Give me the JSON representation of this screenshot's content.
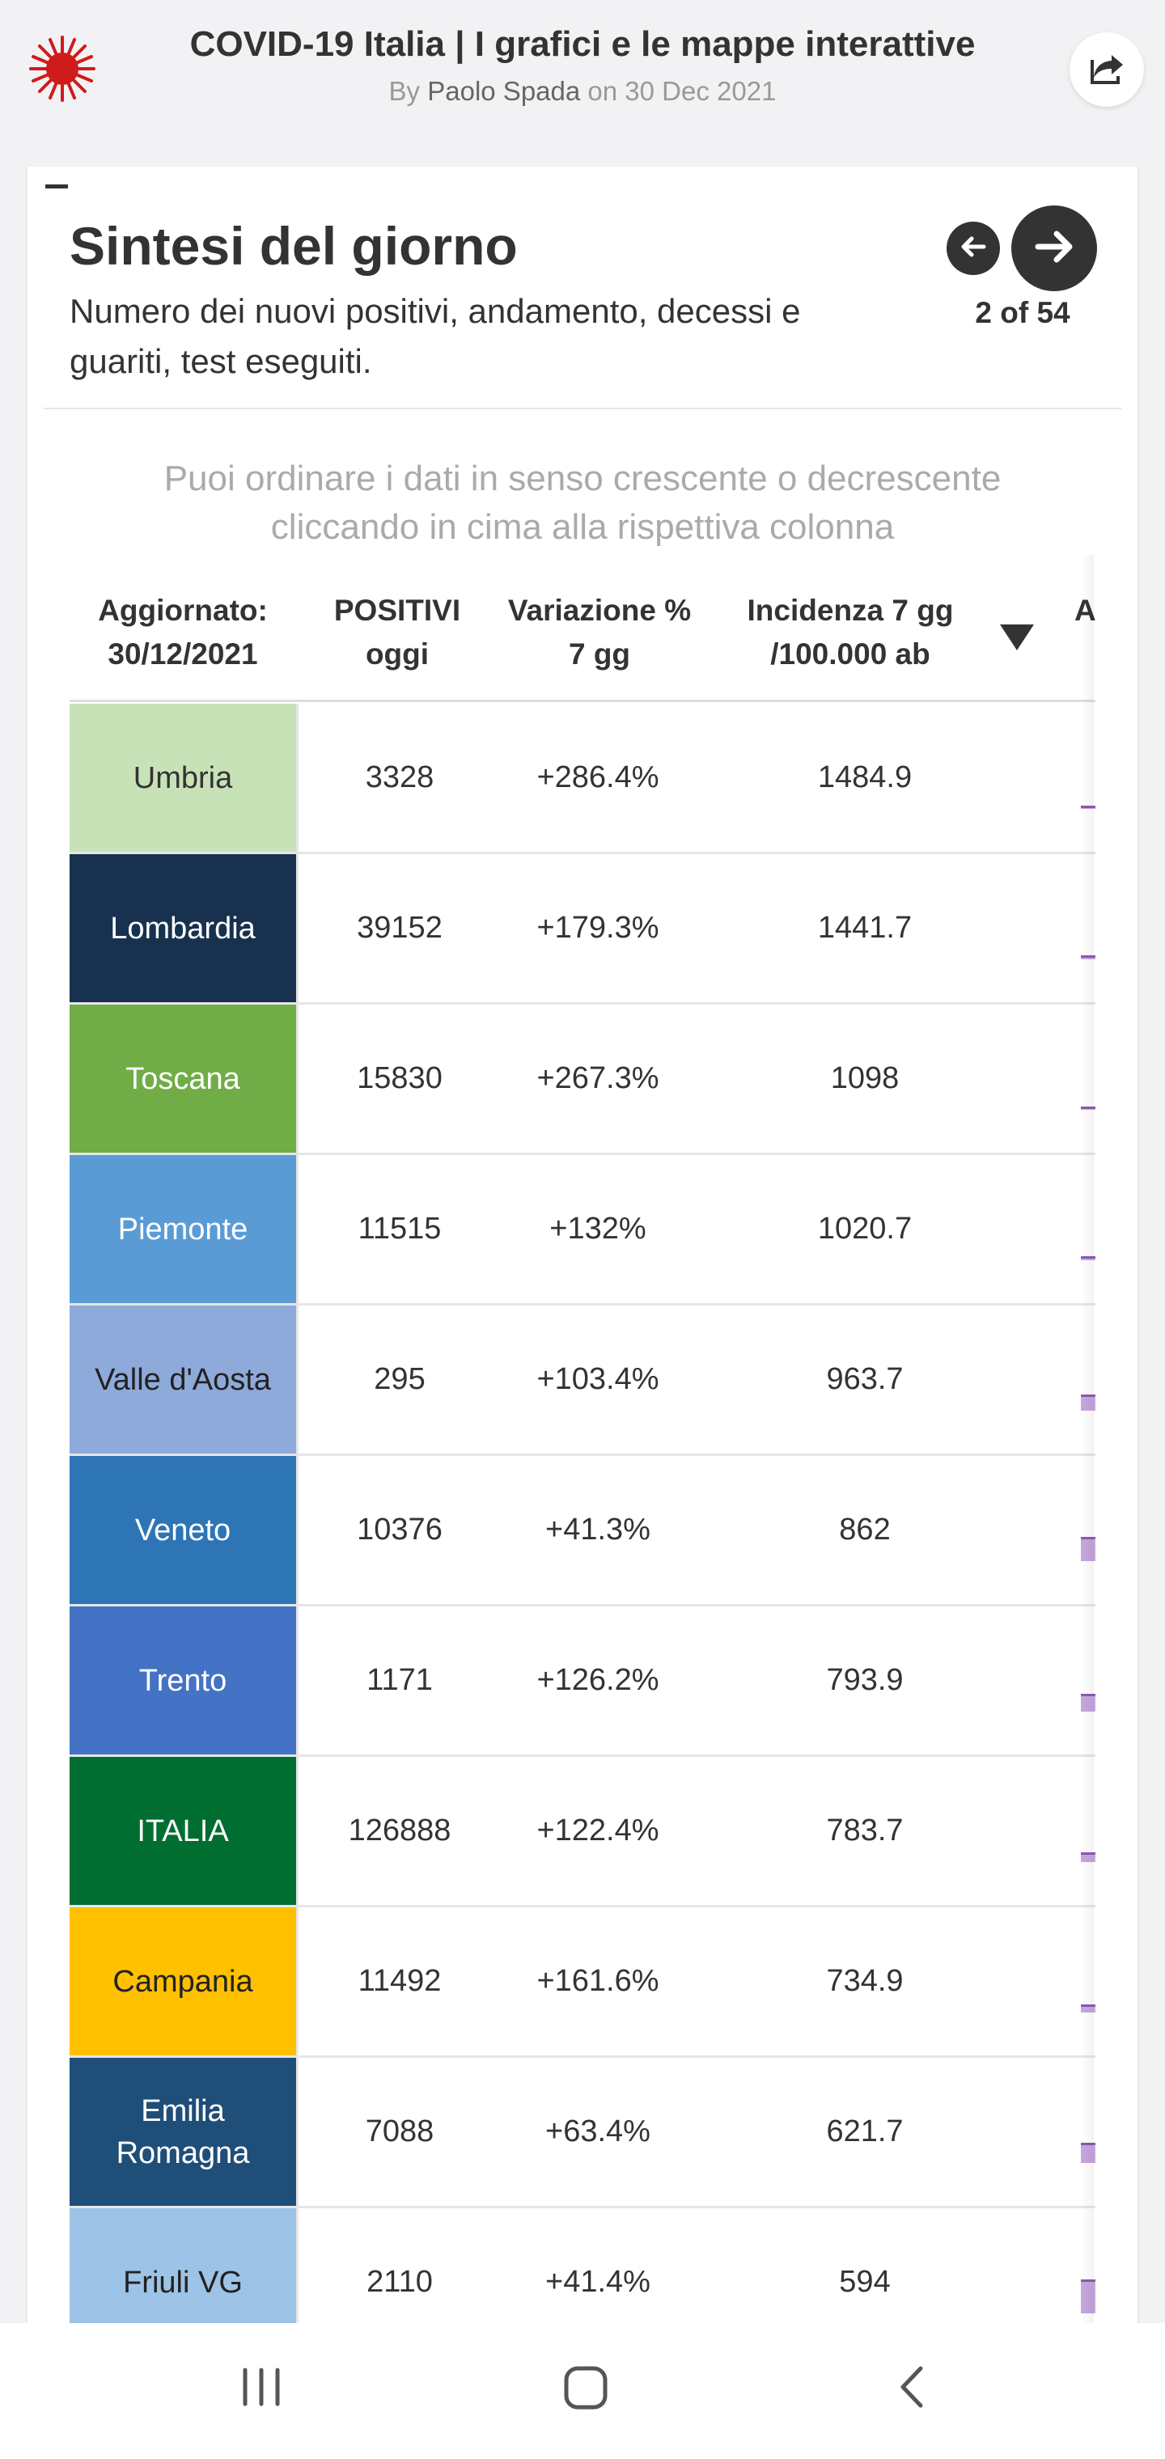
{
  "header": {
    "title": "COVID-19 Italia | I grafici e le mappe interattive",
    "byline_by": "By",
    "author": "Paolo Spada",
    "byline_on": "on",
    "date": "30 Dec 2021"
  },
  "slide": {
    "title": "Sintesi del giorno",
    "subtitle": "Numero dei nuovi positivi, andamento, decessi e guariti, test eseguiti.",
    "counter": "2 of 54",
    "instructions": "Puoi ordinare i dati in senso crescente o decrescente cliccando in cima alla rispettiva colonna"
  },
  "table": {
    "headers": {
      "updated": "Aggiornato: 30/12/2021",
      "positives": "POSITIVI oggi",
      "variation": "Variazione % 7 gg",
      "incidence": "Incidenza 7 gg /100.000 ab",
      "trend": "And"
    },
    "rows": [
      {
        "region": "Umbria",
        "positives": "3328",
        "variation": "+286.4%",
        "incidence": "1484.9",
        "bg": "#c8e2b8",
        "fg": "#333333",
        "spark": 0.04
      },
      {
        "region": "Lombardia",
        "positives": "39152",
        "variation": "+179.3%",
        "incidence": "1441.7",
        "bg": "#17314f",
        "fg": "#ffffff",
        "spark": 0.05
      },
      {
        "region": "Toscana",
        "positives": "15830",
        "variation": "+267.3%",
        "incidence": "1098",
        "bg": "#71ad47",
        "fg": "#ffffff",
        "spark": 0.04
      },
      {
        "region": "Piemonte",
        "positives": "11515",
        "variation": "+132%",
        "incidence": "1020.7",
        "bg": "#5b9bd5",
        "fg": "#ffffff",
        "spark": 0.05
      },
      {
        "region": "Valle d'Aosta",
        "positives": "295",
        "variation": "+103.4%",
        "incidence": "963.7",
        "bg": "#8eaadb",
        "fg": "#222222",
        "spark": 0.2
      },
      {
        "region": "Veneto",
        "positives": "10376",
        "variation": "+41.3%",
        "incidence": "862",
        "bg": "#2e75b6",
        "fg": "#ffffff",
        "spark": 0.3
      },
      {
        "region": "Trento",
        "positives": "1171",
        "variation": "+126.2%",
        "incidence": "793.9",
        "bg": "#4472c4",
        "fg": "#ffffff",
        "spark": 0.22
      },
      {
        "region": "ITALIA",
        "positives": "126888",
        "variation": "+122.4%",
        "incidence": "783.7",
        "bg": "#006d31",
        "fg": "#ffffff",
        "spark": 0.12
      },
      {
        "region": "Campania",
        "positives": "11492",
        "variation": "+161.6%",
        "incidence": "734.9",
        "bg": "#ffc000",
        "fg": "#222222",
        "spark": 0.1
      },
      {
        "region": "Emilia Romagna",
        "positives": "7088",
        "variation": "+63.4%",
        "incidence": "621.7",
        "bg": "#1f4e79",
        "fg": "#ffffff",
        "spark": 0.25
      },
      {
        "region": "Friuli VG",
        "positives": "2110",
        "variation": "+41.4%",
        "incidence": "594",
        "bg": "#9dc3e6",
        "fg": "#222222",
        "spark": 0.42
      }
    ]
  },
  "icons": {
    "logo": "virus-logo-icon",
    "share": "share-icon",
    "prev": "arrow-left-icon",
    "next": "arrow-right-icon",
    "sort": "sort-descending-icon",
    "recents": "recent-apps-icon",
    "home": "home-icon",
    "back": "back-icon"
  },
  "colors": {
    "accent": "#d01b1b",
    "nav_button": "#333333",
    "sparkline_fill": "#c6a6dc",
    "sparkline_line": "#8a5ab4"
  }
}
